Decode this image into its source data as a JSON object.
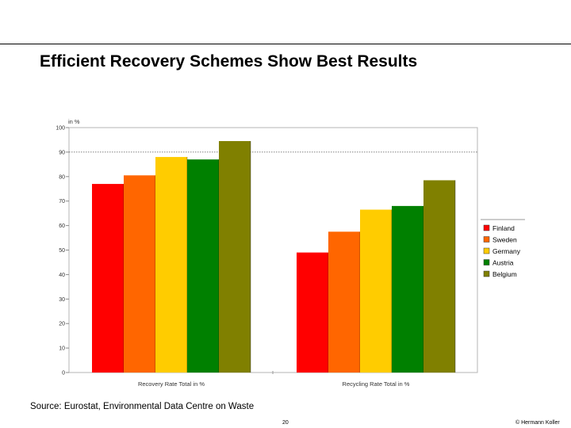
{
  "slide": {
    "title": "Efficient Recovery Schemes Show Best Results",
    "source": "Source: Eurostat, Environmental Data Centre on Waste",
    "page_number": "20",
    "copyright": "© Hermann Koller"
  },
  "chart_data": {
    "type": "bar",
    "unit_label": "in %",
    "categories": [
      "Recovery Rate Total in %",
      "Recycling Rate Total in %"
    ],
    "series": [
      {
        "name": "Finland",
        "color": "#ff0000",
        "values": [
          77,
          49
        ]
      },
      {
        "name": "Sweden",
        "color": "#ff6600",
        "values": [
          80.5,
          57.5
        ]
      },
      {
        "name": "Germany",
        "color": "#ffcc00",
        "values": [
          88,
          66.5
        ]
      },
      {
        "name": "Austria",
        "color": "#008000",
        "values": [
          87,
          68
        ]
      },
      {
        "name": "Belgium",
        "color": "#808000",
        "values": [
          94.5,
          78.5
        ]
      }
    ],
    "ylim": [
      0,
      100
    ],
    "yticks": [
      0,
      10,
      20,
      30,
      40,
      50,
      60,
      70,
      80,
      90,
      100
    ],
    "reference_line": 90,
    "grid": false,
    "legend_position": "right"
  }
}
